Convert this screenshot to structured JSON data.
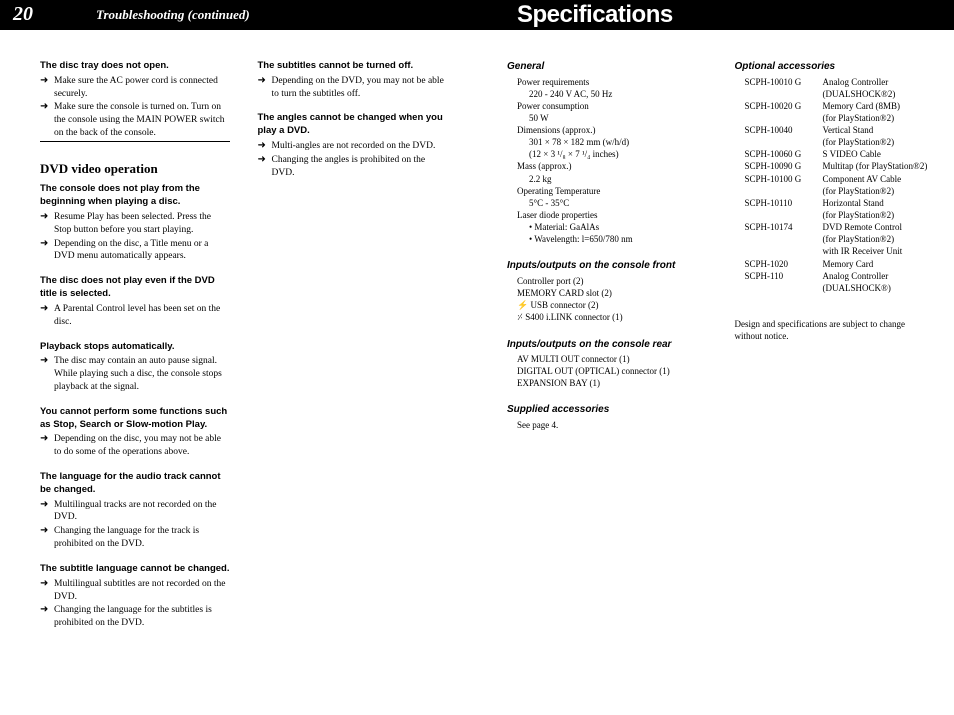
{
  "colors": {
    "header_bg": "#000000",
    "header_fg": "#ffffff",
    "page_bg": "#ffffff",
    "text": "#000000",
    "divider": "#000000"
  },
  "leftPage": {
    "pageNumber": "20",
    "headerTitle": "Troubleshooting (continued)",
    "col1": {
      "issues": [
        {
          "title": "The disc tray does not open.",
          "bullets": [
            "Make sure the AC power cord is connected securely.",
            "Make sure the console is turned on. Turn on the console using the MAIN POWER switch on the back of the console."
          ]
        }
      ],
      "sectionTitle": "DVD video operation",
      "dvdIssues": [
        {
          "title": "The console does not play from the beginning when playing a disc.",
          "bullets": [
            "Resume Play has been selected. Press the Stop button before you start playing.",
            "Depending on the disc, a Title menu or a DVD menu automatically appears."
          ]
        },
        {
          "title": "The disc does not play even if the DVD title is selected.",
          "bullets": [
            "A Parental Control level has been set on the disc."
          ]
        },
        {
          "title": "Playback stops automatically.",
          "bullets": [
            "The disc may contain an auto pause signal. While playing such a disc, the console stops playback at the signal."
          ]
        },
        {
          "title": "You cannot perform some functions such as Stop, Search or Slow-motion Play.",
          "bullets": [
            "Depending on the disc, you may not be able to do some of the operations above."
          ]
        },
        {
          "title": "The language for the audio track cannot be changed.",
          "bullets": [
            "Multilingual tracks are not recorded on the DVD.",
            "Changing the language for the track is prohibited on the DVD."
          ]
        },
        {
          "title": "The subtitle language cannot be changed.",
          "bullets": [
            "Multilingual subtitles are not recorded on the DVD.",
            "Changing the language for the subtitles is prohibited on the DVD."
          ]
        }
      ]
    },
    "col2": {
      "issues": [
        {
          "title": "The subtitles cannot be turned off.",
          "bullets": [
            "Depending on the DVD, you may not be able to turn the subtitles off."
          ]
        },
        {
          "title": "The angles cannot be changed when you play a DVD.",
          "bullets": [
            "Multi-angles are not recorded on the DVD.",
            "Changing the angles is prohibited on the DVD."
          ]
        }
      ]
    }
  },
  "rightPage": {
    "headerTitle": "Specifications",
    "col1": {
      "general": {
        "heading": "General",
        "items": [
          {
            "label": "Power requirements",
            "value": "220 - 240 V AC, 50 Hz"
          },
          {
            "label": "Power consumption",
            "value": "50 W"
          },
          {
            "label": "Dimensions (approx.)",
            "value": "301 × 78 × 182 mm (w/h/d)",
            "value2": "(12 × 3 ¹/₈ × 7 ¹/₄ inches)"
          },
          {
            "label": "Mass (approx.)",
            "value": "2.2 kg"
          },
          {
            "label": "Operating Temperature",
            "value": "5°C - 35°C"
          },
          {
            "label": "Laser diode properties",
            "sub": [
              "• Material: GaAlAs",
              "• Wavelength: l=650/780 nm"
            ]
          }
        ]
      },
      "ioFront": {
        "heading": "Inputs/outputs on the console front",
        "items": [
          "Controller port (2)",
          "MEMORY CARD slot (2)",
          "⚡ USB connector (2)",
          "⸓ S400 i.LINK connector (1)"
        ]
      },
      "ioRear": {
        "heading": "Inputs/outputs on the console rear",
        "items": [
          "AV MULTI OUT connector (1)",
          "DIGITAL OUT (OPTICAL) connector (1)",
          "EXPANSION BAY (1)"
        ]
      },
      "supplied": {
        "heading": "Supplied accessories",
        "text": "See page 4."
      }
    },
    "col2": {
      "optional": {
        "heading": "Optional accessories",
        "items": [
          {
            "code": "SCPH-10010 G",
            "name": "Analog Controller",
            "note": "(DUALSHOCK®2)"
          },
          {
            "code": "SCPH-10020 G",
            "name": "Memory Card (8MB)",
            "note": "(for PlayStation®2)"
          },
          {
            "code": "SCPH-10040",
            "name": "Vertical Stand",
            "note": "(for PlayStation®2)"
          },
          {
            "code": "SCPH-10060 G",
            "name": "S VIDEO Cable"
          },
          {
            "code": "SCPH-10090 G",
            "name": "Multitap (for PlayStation®2)"
          },
          {
            "code": "SCPH-10100 G",
            "name": "Component AV Cable",
            "note": "(for PlayStation®2)"
          },
          {
            "code": "SCPH-10110",
            "name": "Horizontal Stand",
            "note": "(for PlayStation®2)"
          },
          {
            "code": "SCPH-10174",
            "name": "DVD Remote Control",
            "note": "(for PlayStation®2)",
            "note2": "with IR Receiver Unit"
          },
          {
            "code": "SCPH-1020",
            "name": "Memory Card"
          },
          {
            "code": "SCPH-110",
            "name": "Analog Controller",
            "note": "(DUALSHOCK®)"
          }
        ]
      },
      "designNote": "Design and specifications are subject to change without notice."
    }
  }
}
